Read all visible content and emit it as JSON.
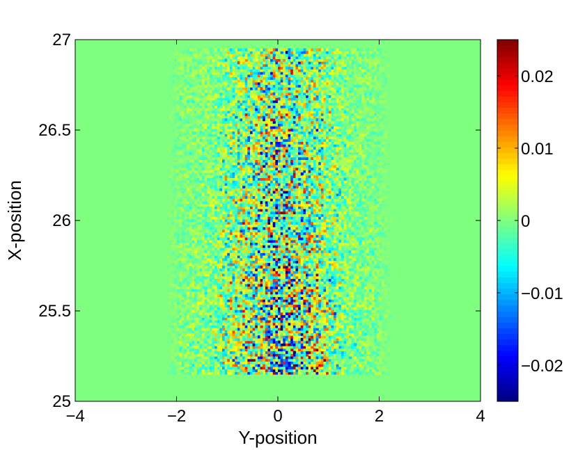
{
  "chart_data": {
    "type": "heatmap",
    "title": "",
    "xlabel": "Y-position",
    "ylabel": "X-position",
    "xlim": [
      -4,
      4
    ],
    "ylim": [
      25,
      27
    ],
    "x_ticks": [
      -4,
      -2,
      0,
      2,
      4
    ],
    "x_tick_labels": [
      "−4",
      "−2",
      "0",
      "2",
      "4"
    ],
    "y_ticks": [
      25,
      25.5,
      26,
      26.5,
      27
    ],
    "y_tick_labels": [
      "25",
      "25.5",
      "26",
      "26.5",
      "27"
    ],
    "colormap": "jet",
    "clim": [
      -0.025,
      0.025
    ],
    "colorbar": {
      "position": "right",
      "ticks": [
        -0.02,
        -0.01,
        0,
        0.01,
        0.02
      ],
      "tick_labels": [
        "−0.02",
        "−0.01",
        "0",
        "0.01",
        "0.02"
      ]
    },
    "data_extent": {
      "y_position_range": [
        -2.3,
        2.3
      ],
      "x_position_range": [
        25.15,
        26.95
      ],
      "strongest_amplitude_y_range": [
        -1.2,
        1.2
      ],
      "strongest_amplitude_x_range": [
        25.15,
        25.9
      ]
    },
    "background_value": 0,
    "grid": false,
    "legend": "none"
  }
}
